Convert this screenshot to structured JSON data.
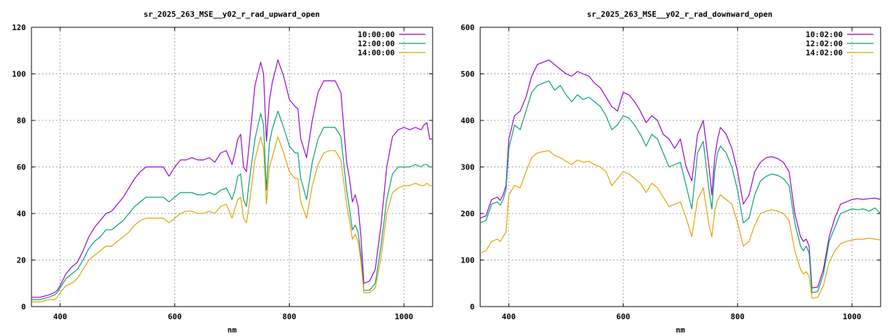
{
  "chart_data": [
    {
      "type": "line",
      "title": "sr_2025_263_MSE__y02_r_rad_upward_open",
      "xlabel": "nm",
      "ylabel": "",
      "xlim": [
        350,
        1050
      ],
      "ylim": [
        0,
        120
      ],
      "xticks": [
        400,
        600,
        800,
        1000
      ],
      "yticks": [
        0,
        20,
        40,
        60,
        80,
        100,
        120
      ],
      "grid": true,
      "legend_position": "top-right",
      "series": [
        {
          "name": "10:00:00",
          "color": "#9400d3",
          "x": [
            350,
            365,
            380,
            390,
            395,
            400,
            410,
            420,
            430,
            440,
            450,
            460,
            470,
            480,
            490,
            500,
            510,
            520,
            530,
            540,
            550,
            560,
            570,
            580,
            590,
            600,
            610,
            620,
            630,
            640,
            650,
            660,
            670,
            680,
            690,
            700,
            705,
            710,
            715,
            720,
            725,
            730,
            740,
            750,
            755,
            760,
            765,
            770,
            780,
            790,
            800,
            810,
            815,
            820,
            830,
            840,
            850,
            860,
            870,
            880,
            890,
            900,
            905,
            910,
            915,
            920,
            925,
            930,
            940,
            950,
            960,
            970,
            980,
            990,
            1000,
            1010,
            1020,
            1030,
            1035,
            1040,
            1045,
            1050
          ],
          "y": [
            4,
            4,
            5,
            6,
            7,
            9,
            14,
            17,
            19,
            24,
            30,
            34,
            37,
            40,
            41,
            44,
            47,
            51,
            55,
            58,
            60,
            60,
            60,
            60,
            56,
            60,
            63,
            63,
            64,
            63,
            63,
            64,
            62,
            66,
            67,
            61,
            66,
            72,
            74,
            60,
            58,
            70,
            95,
            105,
            100,
            71,
            88,
            96,
            106,
            99,
            89,
            86,
            85,
            72,
            64,
            80,
            92,
            97,
            97,
            97,
            92,
            62,
            55,
            45,
            48,
            43,
            30,
            10,
            11,
            16,
            35,
            60,
            73,
            76,
            77,
            76,
            77,
            76,
            78,
            79,
            72,
            72
          ]
        },
        {
          "name": "12:00:00",
          "color": "#009e73",
          "x": [
            350,
            365,
            380,
            390,
            395,
            400,
            410,
            420,
            430,
            440,
            450,
            460,
            470,
            480,
            490,
            500,
            510,
            520,
            530,
            540,
            550,
            560,
            570,
            580,
            590,
            600,
            610,
            620,
            630,
            640,
            650,
            660,
            670,
            680,
            690,
            700,
            705,
            710,
            715,
            720,
            725,
            730,
            740,
            750,
            755,
            760,
            765,
            770,
            780,
            790,
            800,
            810,
            815,
            820,
            830,
            840,
            850,
            860,
            870,
            880,
            890,
            900,
            905,
            910,
            915,
            920,
            925,
            930,
            940,
            950,
            960,
            970,
            980,
            990,
            1000,
            1010,
            1020,
            1030,
            1035,
            1040,
            1045,
            1050
          ],
          "y": [
            3,
            3,
            4,
            5,
            6,
            8,
            12,
            14,
            16,
            20,
            25,
            28,
            30,
            33,
            33,
            35,
            37,
            40,
            43,
            45,
            47,
            47,
            47,
            47,
            45,
            47,
            49,
            49,
            49,
            48,
            48,
            49,
            48,
            50,
            51,
            46,
            50,
            56,
            57,
            46,
            43,
            54,
            72,
            83,
            78,
            50,
            70,
            76,
            84,
            77,
            69,
            66,
            66,
            55,
            46,
            62,
            72,
            77,
            77,
            77,
            73,
            50,
            42,
            33,
            35,
            32,
            22,
            7,
            7,
            10,
            26,
            46,
            57,
            60,
            60,
            60,
            61,
            60,
            61,
            61,
            60,
            60
          ]
        },
        {
          "name": "14:00:00",
          "color": "#e69f00",
          "x": [
            350,
            365,
            380,
            390,
            395,
            400,
            410,
            420,
            430,
            440,
            450,
            460,
            470,
            480,
            490,
            500,
            510,
            520,
            530,
            540,
            550,
            560,
            570,
            580,
            590,
            600,
            610,
            620,
            630,
            640,
            650,
            660,
            670,
            680,
            690,
            700,
            705,
            710,
            715,
            720,
            725,
            730,
            740,
            750,
            755,
            760,
            765,
            770,
            780,
            790,
            800,
            810,
            815,
            820,
            830,
            840,
            850,
            860,
            870,
            880,
            890,
            900,
            905,
            910,
            915,
            920,
            925,
            930,
            940,
            950,
            960,
            970,
            980,
            990,
            1000,
            1010,
            1020,
            1030,
            1035,
            1040,
            1045,
            1050
          ],
          "y": [
            2,
            2,
            3,
            3,
            4,
            6,
            9,
            10,
            12,
            16,
            20,
            22,
            24,
            26,
            26,
            28,
            30,
            32,
            35,
            37,
            38,
            38,
            38,
            38,
            36,
            38,
            40,
            41,
            41,
            40,
            40,
            41,
            40,
            43,
            44,
            38,
            42,
            46,
            47,
            38,
            36,
            44,
            63,
            73,
            68,
            44,
            60,
            64,
            73,
            66,
            58,
            55,
            55,
            45,
            38,
            52,
            61,
            66,
            67,
            67,
            63,
            44,
            37,
            29,
            31,
            28,
            19,
            6,
            6,
            8,
            21,
            40,
            49,
            51,
            52,
            52,
            53,
            52,
            52,
            53,
            52,
            52
          ]
        }
      ]
    },
    {
      "type": "line",
      "title": "sr_2025_263_MSE__y02_r_rad_downward_open",
      "xlabel": "nm",
      "ylabel": "",
      "xlim": [
        350,
        1050
      ],
      "ylim": [
        0,
        600
      ],
      "xticks": [
        400,
        600,
        800,
        1000
      ],
      "yticks": [
        0,
        100,
        200,
        300,
        400,
        500,
        600
      ],
      "grid": true,
      "legend_position": "top-right",
      "series": [
        {
          "name": "10:02:00",
          "color": "#9400d3",
          "x": [
            350,
            360,
            370,
            380,
            385,
            390,
            395,
            400,
            410,
            420,
            430,
            440,
            450,
            460,
            470,
            480,
            490,
            500,
            510,
            520,
            530,
            540,
            550,
            560,
            570,
            580,
            590,
            600,
            610,
            620,
            630,
            640,
            650,
            660,
            670,
            680,
            690,
            700,
            710,
            720,
            730,
            740,
            750,
            755,
            760,
            765,
            770,
            780,
            790,
            800,
            810,
            820,
            830,
            840,
            850,
            860,
            870,
            880,
            890,
            900,
            910,
            915,
            920,
            925,
            930,
            940,
            950,
            960,
            970,
            980,
            990,
            1000,
            1010,
            1020,
            1030,
            1040,
            1050
          ],
          "y": [
            190,
            195,
            230,
            235,
            228,
            240,
            260,
            360,
            410,
            420,
            450,
            495,
            520,
            525,
            530,
            520,
            510,
            500,
            495,
            505,
            500,
            495,
            480,
            470,
            450,
            430,
            420,
            460,
            455,
            440,
            420,
            395,
            410,
            400,
            370,
            360,
            340,
            360,
            300,
            270,
            370,
            400,
            300,
            240,
            320,
            360,
            385,
            370,
            340,
            290,
            220,
            240,
            290,
            310,
            320,
            322,
            318,
            310,
            290,
            200,
            150,
            140,
            145,
            130,
            40,
            42,
            80,
            150,
            190,
            220,
            225,
            230,
            232,
            230,
            232,
            233,
            230
          ]
        },
        {
          "name": "12:02:00",
          "color": "#009e73",
          "x": [
            350,
            360,
            370,
            380,
            385,
            390,
            395,
            400,
            410,
            420,
            430,
            440,
            450,
            460,
            470,
            480,
            490,
            500,
            510,
            520,
            530,
            540,
            550,
            560,
            570,
            580,
            590,
            600,
            610,
            620,
            630,
            640,
            650,
            660,
            670,
            680,
            690,
            700,
            710,
            720,
            730,
            740,
            750,
            755,
            760,
            765,
            770,
            780,
            790,
            800,
            810,
            820,
            830,
            840,
            850,
            860,
            870,
            880,
            890,
            900,
            910,
            915,
            920,
            925,
            930,
            940,
            950,
            960,
            970,
            980,
            990,
            1000,
            1010,
            1020,
            1030,
            1040,
            1050
          ],
          "y": [
            180,
            185,
            220,
            225,
            218,
            230,
            250,
            340,
            390,
            380,
            420,
            460,
            475,
            480,
            485,
            465,
            475,
            455,
            440,
            455,
            445,
            450,
            440,
            430,
            410,
            380,
            390,
            410,
            405,
            390,
            370,
            345,
            370,
            360,
            330,
            300,
            305,
            310,
            260,
            210,
            330,
            355,
            250,
            210,
            290,
            330,
            345,
            330,
            300,
            250,
            180,
            190,
            240,
            270,
            280,
            285,
            282,
            275,
            260,
            180,
            130,
            120,
            130,
            115,
            30,
            32,
            70,
            140,
            170,
            200,
            205,
            210,
            208,
            210,
            205,
            212,
            200
          ]
        },
        {
          "name": "14:02:00",
          "color": "#e69f00",
          "x": [
            350,
            360,
            370,
            380,
            385,
            390,
            395,
            400,
            410,
            420,
            430,
            440,
            450,
            460,
            470,
            480,
            490,
            500,
            510,
            520,
            530,
            540,
            550,
            560,
            570,
            580,
            590,
            600,
            610,
            620,
            630,
            640,
            650,
            660,
            670,
            680,
            690,
            700,
            710,
            720,
            730,
            740,
            750,
            755,
            760,
            765,
            770,
            780,
            790,
            800,
            810,
            820,
            830,
            840,
            850,
            860,
            870,
            880,
            890,
            900,
            910,
            915,
            920,
            925,
            930,
            940,
            950,
            960,
            970,
            980,
            990,
            1000,
            1010,
            1020,
            1030,
            1040,
            1050
          ],
          "y": [
            115,
            120,
            140,
            145,
            140,
            150,
            160,
            240,
            260,
            255,
            290,
            320,
            330,
            333,
            335,
            325,
            320,
            312,
            305,
            315,
            310,
            312,
            305,
            300,
            290,
            260,
            275,
            290,
            285,
            275,
            265,
            245,
            265,
            255,
            235,
            215,
            220,
            225,
            190,
            150,
            230,
            255,
            175,
            150,
            205,
            230,
            240,
            230,
            220,
            180,
            130,
            140,
            175,
            200,
            205,
            208,
            205,
            200,
            185,
            120,
            80,
            70,
            75,
            65,
            18,
            20,
            45,
            95,
            120,
            135,
            140,
            143,
            145,
            145,
            147,
            145,
            143
          ]
        }
      ]
    }
  ]
}
